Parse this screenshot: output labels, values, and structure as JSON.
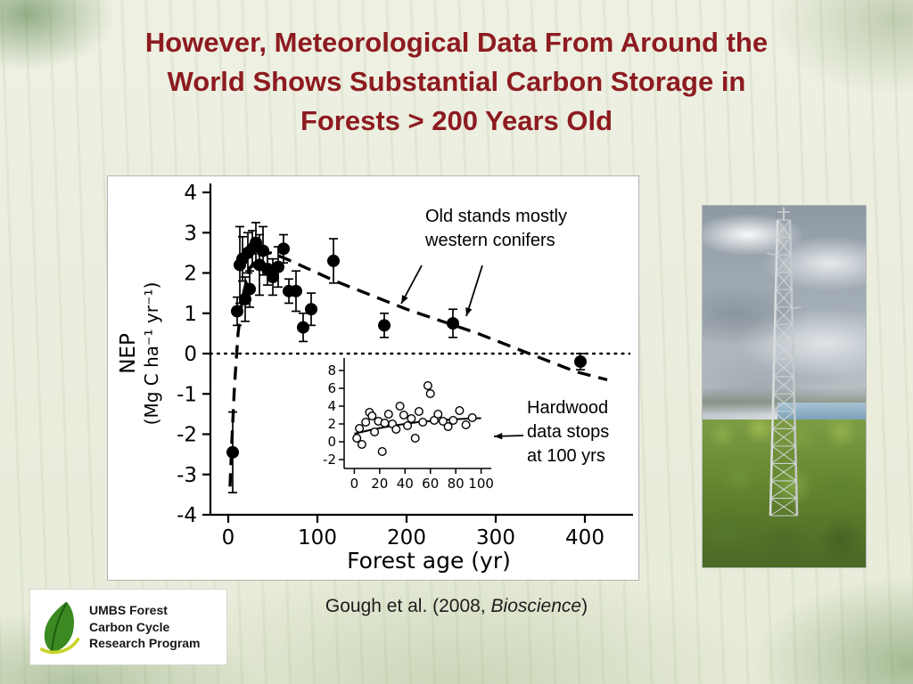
{
  "slide": {
    "title_lines": [
      "However, Meteorological Data From Around the",
      "World Shows Substantial Carbon Storage in",
      "Forests > 200 Years Old"
    ],
    "title_color": "#8d1b20",
    "citation": {
      "prefix": "Gough et al. (2008, ",
      "italic": "Bioscience",
      "suffix": ")"
    }
  },
  "logo": {
    "lines": [
      "UMBS Forest",
      "Carbon Cycle",
      "Research Program"
    ],
    "leaf_color": "#3b8a21",
    "accent_color": "#c9d42a"
  },
  "photo": {
    "description": "Meteorological flux tower rising above green forest canopy under a cloudy sky"
  },
  "chart_data": {
    "type": "scatter",
    "xlabel": "Forest age (yr)",
    "ylabel": "NEP",
    "ylabel_units": "(Mg C ha⁻¹ yr⁻¹)",
    "xlim": [
      -20,
      450
    ],
    "ylim": [
      -4,
      4
    ],
    "xticks": [
      0,
      100,
      200,
      300,
      400
    ],
    "yticks": [
      4,
      3,
      2,
      1,
      0,
      -1,
      -2,
      -3,
      -4
    ],
    "zero_reference_line": 0,
    "points": [
      {
        "x": 5,
        "y": -2.45,
        "err": 1.0
      },
      {
        "x": 10,
        "y": 1.05,
        "err": 0.35
      },
      {
        "x": 13,
        "y": 2.2,
        "err": 0.95
      },
      {
        "x": 16,
        "y": 2.35,
        "err": 0.55
      },
      {
        "x": 19,
        "y": 1.35,
        "err": 0.55
      },
      {
        "x": 22,
        "y": 2.5,
        "err": 0.5
      },
      {
        "x": 24,
        "y": 1.6,
        "err": 0.45
      },
      {
        "x": 27,
        "y": 2.6,
        "err": 0.45
      },
      {
        "x": 31,
        "y": 2.75,
        "err": 0.5
      },
      {
        "x": 35,
        "y": 2.2,
        "err": 0.75
      },
      {
        "x": 39,
        "y": 2.55,
        "err": 0.6
      },
      {
        "x": 44,
        "y": 2.1,
        "err": 0.4
      },
      {
        "x": 50,
        "y": 1.9,
        "err": 0.45
      },
      {
        "x": 56,
        "y": 2.15,
        "err": 0.5
      },
      {
        "x": 62,
        "y": 2.6,
        "err": 0.35
      },
      {
        "x": 68,
        "y": 1.55,
        "err": 0.3
      },
      {
        "x": 76,
        "y": 1.55,
        "err": 0.5
      },
      {
        "x": 84,
        "y": 0.65,
        "err": 0.35
      },
      {
        "x": 93,
        "y": 1.1,
        "err": 0.4
      },
      {
        "x": 118,
        "y": 2.3,
        "err": 0.55
      },
      {
        "x": 175,
        "y": 0.7,
        "err": 0.3
      },
      {
        "x": 252,
        "y": 0.75,
        "err": 0.35
      },
      {
        "x": 395,
        "y": -0.2,
        "err": 0.2
      }
    ],
    "trend_dashed": [
      [
        2,
        -3.3
      ],
      [
        4,
        -2.2
      ],
      [
        7,
        -0.8
      ],
      [
        11,
        0.5
      ],
      [
        16,
        1.4
      ],
      [
        24,
        2.1
      ],
      [
        34,
        2.45
      ],
      [
        48,
        2.5
      ],
      [
        65,
        2.35
      ],
      [
        90,
        2.1
      ],
      [
        120,
        1.8
      ],
      [
        160,
        1.45
      ],
      [
        200,
        1.1
      ],
      [
        240,
        0.8
      ],
      [
        280,
        0.5
      ],
      [
        320,
        0.15
      ],
      [
        355,
        -0.15
      ],
      [
        390,
        -0.45
      ],
      [
        425,
        -0.65
      ]
    ],
    "annotations": [
      {
        "lines": [
          "Old stands mostly",
          "western conifers"
        ]
      },
      {
        "lines": [
          "Hardwood",
          "data stops",
          "at 100 yrs"
        ]
      }
    ],
    "inset": {
      "xlim": [
        -8,
        108
      ],
      "ylim": [
        -3,
        9
      ],
      "xticks": [
        0,
        20,
        40,
        60,
        80,
        100
      ],
      "yticks": [
        8,
        6,
        4,
        2,
        0,
        -2
      ],
      "points": [
        [
          2,
          0.4
        ],
        [
          4,
          1.5
        ],
        [
          6,
          -0.3
        ],
        [
          9,
          2.2
        ],
        [
          12,
          3.3
        ],
        [
          14,
          2.9
        ],
        [
          16,
          1.1
        ],
        [
          19,
          2.3
        ],
        [
          22,
          -1.1
        ],
        [
          24,
          2.1
        ],
        [
          27,
          3.1
        ],
        [
          30,
          2.0
        ],
        [
          33,
          1.4
        ],
        [
          36,
          4.0
        ],
        [
          39,
          3.0
        ],
        [
          42,
          1.8
        ],
        [
          45,
          2.6
        ],
        [
          48,
          0.4
        ],
        [
          51,
          3.4
        ],
        [
          54,
          2.2
        ],
        [
          58,
          6.3
        ],
        [
          60,
          5.4
        ],
        [
          63,
          2.4
        ],
        [
          66,
          3.1
        ],
        [
          70,
          2.3
        ],
        [
          74,
          1.7
        ],
        [
          78,
          2.4
        ],
        [
          83,
          3.5
        ],
        [
          88,
          1.9
        ],
        [
          93,
          2.7
        ]
      ],
      "trend": [
        [
          0,
          0.9
        ],
        [
          15,
          1.4
        ],
        [
          30,
          1.8
        ],
        [
          50,
          2.2
        ],
        [
          70,
          2.45
        ],
        [
          90,
          2.6
        ],
        [
          100,
          2.65
        ]
      ]
    }
  }
}
